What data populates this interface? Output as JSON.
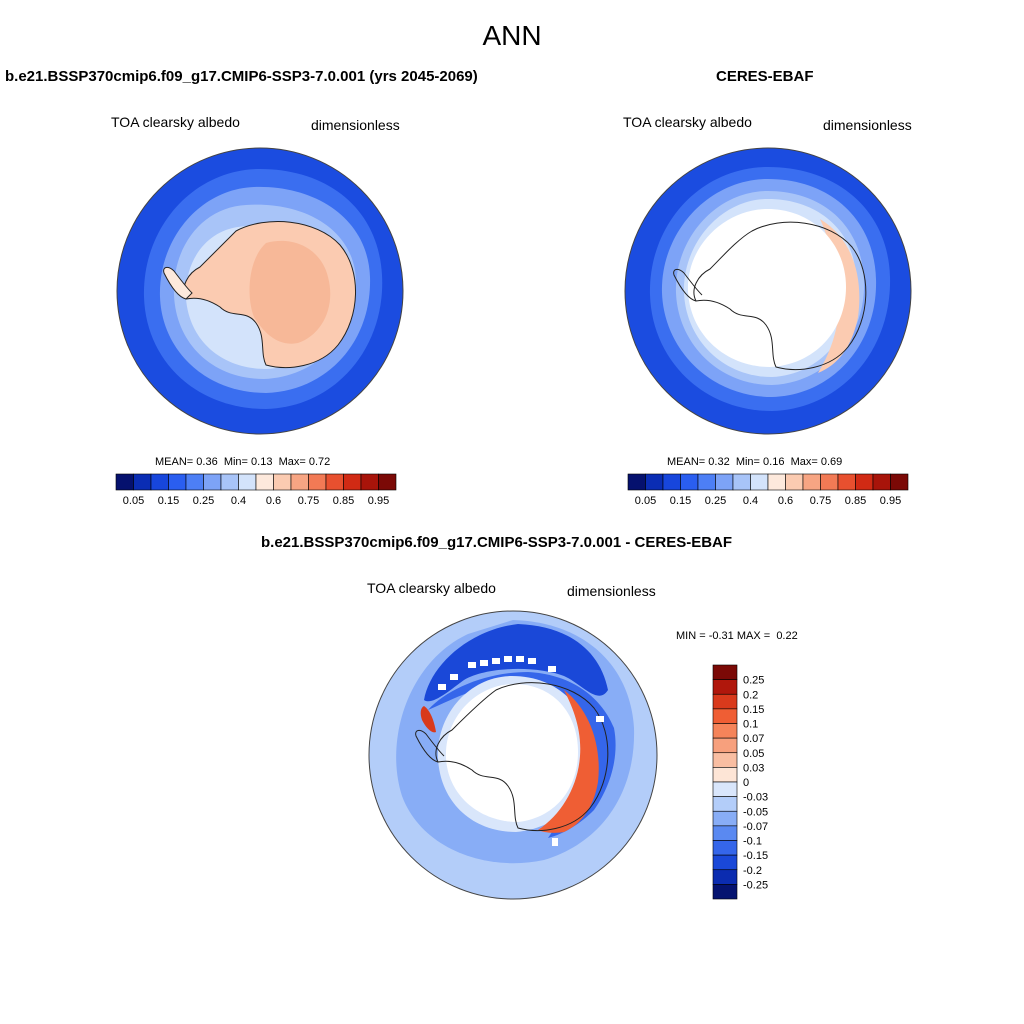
{
  "main_title": "ANN",
  "panels": [
    {
      "title": "b.e21.BSSP370cmip6.f09_g17.CMIP6-SSP3-7.0.001 (yrs 2045-2069)",
      "var_label": "TOA clearsky albedo",
      "units": "dimensionless",
      "stats": {
        "mean_label": "MEAN=",
        "mean": "0.36",
        "min_label": "Min=",
        "min": "0.13",
        "max_label": "Max=",
        "max": "0.72"
      }
    },
    {
      "title": "CERES-EBAF",
      "var_label": "TOA clearsky albedo",
      "units": "dimensionless",
      "stats": {
        "mean_label": "MEAN=",
        "mean": "0.32",
        "min_label": "Min=",
        "min": "0.16",
        "max_label": "Max=",
        "max": "0.69"
      }
    },
    {
      "title": "b.e21.BSSP370cmip6.f09_g17.CMIP6-SSP3-7.0.001 - CERES-EBAF",
      "var_label": "TOA clearsky albedo",
      "units": "dimensionless",
      "stats": {
        "min_label": "MIN =",
        "min": "-0.31",
        "max_label": "MAX =",
        "max": "0.22"
      }
    }
  ],
  "colorbar_abs": {
    "colors": [
      "#05116e",
      "#0a2db4",
      "#1746dc",
      "#2a5ef0",
      "#4d7ff5",
      "#7da3f7",
      "#a8c4f8",
      "#d3e3fb",
      "#fde9dc",
      "#fbcbb1",
      "#f7a583",
      "#f27a55",
      "#e8502f",
      "#d12a14",
      "#a8140a",
      "#7b0906"
    ],
    "tick_labels": [
      "0.05",
      "0.15",
      "0.25",
      "0.4",
      "0.6",
      "0.75",
      "0.85",
      "0.95"
    ]
  },
  "colorbar_diff": {
    "colors": [
      "#7b0906",
      "#b0170c",
      "#d93a1c",
      "#ef5e34",
      "#f5845a",
      "#f7a07d",
      "#f9bea2",
      "#fde5d6",
      "#d9e6fb",
      "#b3cdf9",
      "#88adf6",
      "#5a89f1",
      "#3566ea",
      "#1a48d8",
      "#0b2cb0",
      "#051370"
    ],
    "tick_labels": [
      "0.25",
      "0.2",
      "0.15",
      "0.1",
      "0.07",
      "0.05",
      "0.03",
      "0",
      "-0.03",
      "-0.05",
      "-0.07",
      "-0.1",
      "-0.15",
      "-0.2",
      "-0.25"
    ]
  },
  "map_colors": {
    "ocean_deep": "#1b4ce0",
    "ocean_mid": "#3a6ef0",
    "ocean_light": "#a8c4f8",
    "ocean_pale": "#d3e3fb",
    "ice_warm": "#fbcbb1",
    "ice_pale": "#fde9dc",
    "diff_pos": "#ef5e34",
    "diff_strong": "#d93a1c",
    "white": "#ffffff"
  }
}
